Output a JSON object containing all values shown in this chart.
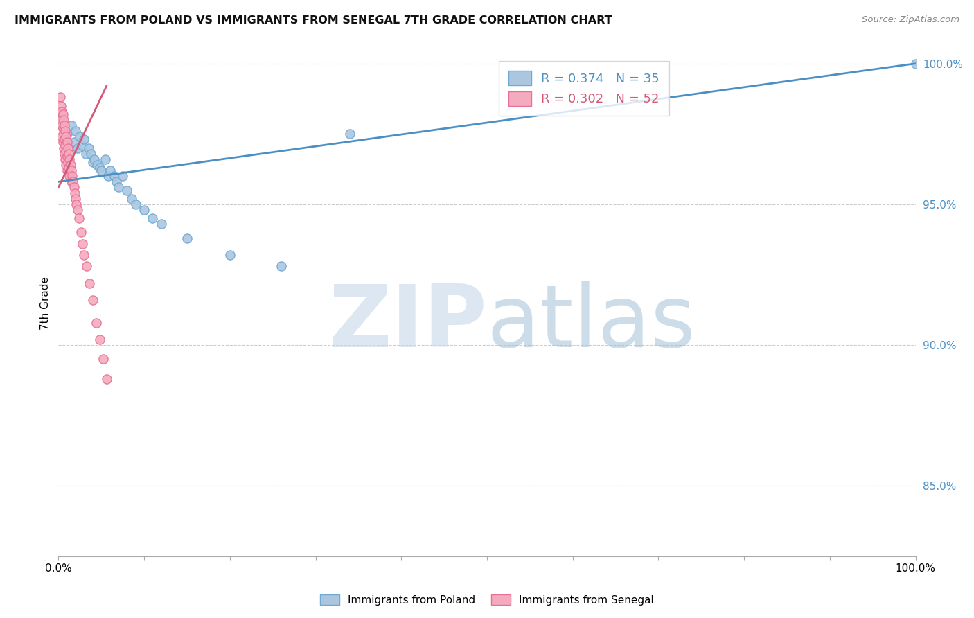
{
  "title": "IMMIGRANTS FROM POLAND VS IMMIGRANTS FROM SENEGAL 7TH GRADE CORRELATION CHART",
  "source": "Source: ZipAtlas.com",
  "ylabel": "7th Grade",
  "right_ytick_labels": [
    "100.0%",
    "95.0%",
    "90.0%",
    "85.0%"
  ],
  "right_ytick_positions": [
    1.0,
    0.95,
    0.9,
    0.85
  ],
  "legend_poland_r": "R = 0.374",
  "legend_poland_n": "N = 35",
  "legend_senegal_r": "R = 0.302",
  "legend_senegal_n": "N = 52",
  "poland_color": "#adc6e0",
  "senegal_color": "#f5abbe",
  "poland_edge_color": "#6aaad4",
  "senegal_edge_color": "#e87098",
  "poland_line_color": "#4a90c4",
  "senegal_line_color": "#d45878",
  "poland_scatter_x": [
    0.005,
    0.01,
    0.015,
    0.018,
    0.02,
    0.022,
    0.025,
    0.028,
    0.03,
    0.032,
    0.035,
    0.038,
    0.04,
    0.042,
    0.045,
    0.048,
    0.05,
    0.055,
    0.058,
    0.06,
    0.065,
    0.068,
    0.07,
    0.075,
    0.08,
    0.085,
    0.09,
    0.1,
    0.11,
    0.12,
    0.15,
    0.2,
    0.26,
    0.34,
    1.0
  ],
  "poland_scatter_y": [
    0.98,
    0.975,
    0.978,
    0.972,
    0.976,
    0.97,
    0.974,
    0.971,
    0.973,
    0.968,
    0.97,
    0.968,
    0.965,
    0.966,
    0.964,
    0.963,
    0.962,
    0.966,
    0.96,
    0.962,
    0.96,
    0.958,
    0.956,
    0.96,
    0.955,
    0.952,
    0.95,
    0.948,
    0.945,
    0.943,
    0.938,
    0.932,
    0.928,
    0.975,
    1.0
  ],
  "senegal_scatter_x": [
    0.002,
    0.002,
    0.003,
    0.003,
    0.004,
    0.004,
    0.004,
    0.005,
    0.005,
    0.005,
    0.006,
    0.006,
    0.006,
    0.007,
    0.007,
    0.007,
    0.008,
    0.008,
    0.008,
    0.009,
    0.009,
    0.009,
    0.01,
    0.01,
    0.01,
    0.011,
    0.011,
    0.012,
    0.012,
    0.013,
    0.013,
    0.014,
    0.015,
    0.015,
    0.016,
    0.017,
    0.018,
    0.019,
    0.02,
    0.021,
    0.022,
    0.024,
    0.026,
    0.028,
    0.03,
    0.033,
    0.036,
    0.04,
    0.044,
    0.048,
    0.052,
    0.056
  ],
  "senegal_scatter_y": [
    0.988,
    0.982,
    0.985,
    0.98,
    0.983,
    0.978,
    0.974,
    0.982,
    0.977,
    0.972,
    0.98,
    0.975,
    0.97,
    0.978,
    0.973,
    0.968,
    0.976,
    0.971,
    0.966,
    0.974,
    0.969,
    0.964,
    0.972,
    0.967,
    0.962,
    0.97,
    0.965,
    0.968,
    0.963,
    0.966,
    0.96,
    0.964,
    0.962,
    0.958,
    0.96,
    0.958,
    0.956,
    0.954,
    0.952,
    0.95,
    0.948,
    0.945,
    0.94,
    0.936,
    0.932,
    0.928,
    0.922,
    0.916,
    0.908,
    0.902,
    0.895,
    0.888
  ],
  "poland_trend_x": [
    0.0,
    1.0
  ],
  "poland_trend_y": [
    0.958,
    1.0
  ],
  "senegal_trend_x": [
    0.0,
    0.056
  ],
  "senegal_trend_y": [
    0.956,
    0.992
  ],
  "xmin": 0.0,
  "xmax": 1.0,
  "ymin": 0.825,
  "ymax": 1.005,
  "xtick_positions": [
    0.0,
    0.1,
    0.2,
    0.3,
    0.4,
    0.5,
    0.6,
    0.7,
    0.8,
    0.9,
    1.0
  ],
  "grid_color": "#cccccc",
  "background_color": "#ffffff",
  "watermark_zip": "ZIP",
  "watermark_atlas": "atlas",
  "watermark_zip_color": "#c5d8ea",
  "watermark_atlas_color": "#9bbdd4"
}
